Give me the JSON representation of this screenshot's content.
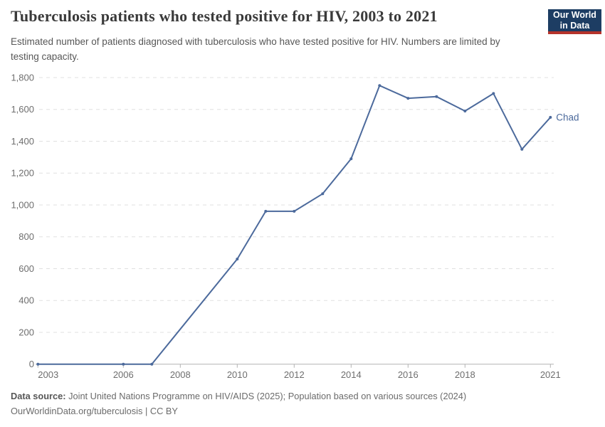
{
  "header": {
    "title": "Tuberculosis patients who tested positive for HIV, 2003 to 2021",
    "subtitle": "Estimated number of patients diagnosed with tuberculosis who have tested positive for HIV. Numbers are limited by testing capacity.",
    "logo_line1": "Our World",
    "logo_line2": "in Data"
  },
  "chart_data": {
    "type": "line",
    "title": "Tuberculosis patients who tested positive for HIV, 2003 to 2021",
    "entity_label": "Chad",
    "series": [
      {
        "name": "Chad",
        "points": [
          [
            2003,
            0
          ],
          [
            2006,
            0
          ],
          [
            2007,
            0
          ],
          [
            2010,
            660
          ],
          [
            2011,
            960
          ],
          [
            2012,
            960
          ],
          [
            2013,
            1070
          ],
          [
            2014,
            1290
          ],
          [
            2015,
            1750
          ],
          [
            2016,
            1670
          ],
          [
            2017,
            1680
          ],
          [
            2018,
            1590
          ],
          [
            2019,
            1700
          ],
          [
            2020,
            1350
          ],
          [
            2021,
            1550
          ]
        ]
      }
    ],
    "xlim": [
      2003,
      2021
    ],
    "ylim": [
      0,
      1800
    ],
    "y_ticks": [
      0,
      200,
      400,
      600,
      800,
      1000,
      1200,
      1400,
      1600,
      1800
    ],
    "x_ticks": [
      2003,
      2006,
      2008,
      2010,
      2012,
      2014,
      2016,
      2018,
      2021
    ],
    "grid": "horizontal-dashed",
    "legend_position": "end-of-line-label",
    "xlabel": "",
    "ylabel": ""
  },
  "colors": {
    "line": "#4C6A9C",
    "entity_label": "#4C6A9C",
    "grid": "#e0e0e0",
    "axis": "#b3b3b3",
    "tick_text": "#6e6e6e",
    "title_text": "#3a3a3a",
    "subtitle_text": "#575757",
    "logo_bg": "#1d3d63",
    "logo_stripe": "#b5332b"
  },
  "footer": {
    "datasource_label": "Data source:",
    "datasource_text": " Joint United Nations Programme on HIV/AIDS (2025); Population based on various sources (2024)",
    "url": "OurWorldinData.org/tuberculosis",
    "separator": " | ",
    "license": "CC BY"
  }
}
